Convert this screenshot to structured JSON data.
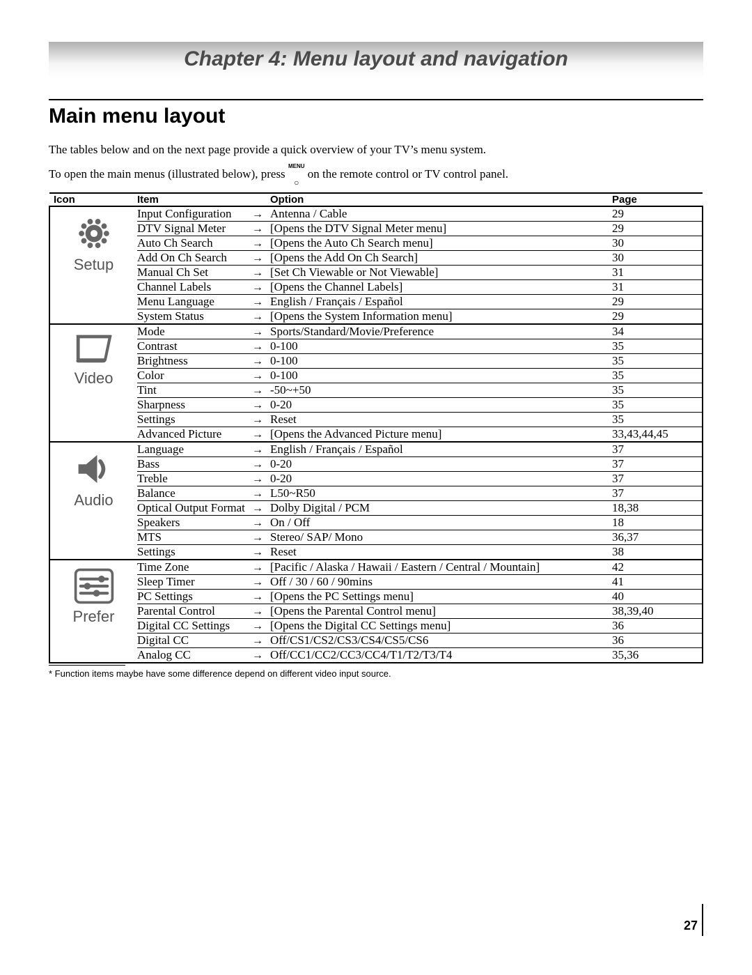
{
  "chapter_title": "Chapter 4: Menu layout and navigation",
  "section_title": "Main menu layout",
  "intro_line1": "The tables below and on the next page provide a quick overview of your TV’s menu system.",
  "intro_line2_a": "To open the main menus (illustrated below), press ",
  "intro_menu_label": "MENU",
  "intro_line2_b": " on the remote control or TV control panel.",
  "headers": {
    "icon": "Icon",
    "item": "Item",
    "option": "Option",
    "page": "Page"
  },
  "arrow": "→",
  "footnote": "*  Function items maybe have some difference depend on different video input source.",
  "page_number": "27",
  "sections": [
    {
      "name": "Setup",
      "icon": "gear",
      "rows": [
        {
          "item": "Input Configuration",
          "option": "Antenna / Cable",
          "page": "29"
        },
        {
          "item": "DTV Signal Meter",
          "option": "[Opens the DTV Signal Meter menu]",
          "page": "29"
        },
        {
          "item": "Auto Ch Search",
          "option": "[Opens the Auto Ch Search menu]",
          "page": "30"
        },
        {
          "item": "Add On Ch Search",
          "option": "[Opens the Add On Ch Search]",
          "page": "30"
        },
        {
          "item": "Manual Ch Set",
          "option": "[Set Ch Viewable or Not Viewable]",
          "page": "31"
        },
        {
          "item": "Channel Labels",
          "option": "[Opens the Channel Labels]",
          "page": "31"
        },
        {
          "item": "Menu Language",
          "option": "English / Français / Español",
          "page": "29"
        },
        {
          "item": "System Status",
          "option": "[Opens the System Information menu]",
          "page": "29"
        }
      ]
    },
    {
      "name": "Video",
      "icon": "screen",
      "rows": [
        {
          "item": "Mode",
          "option": "Sports/Standard/Movie/Preference",
          "page": "34"
        },
        {
          "item": "Contrast",
          "option": "0-100",
          "page": "35"
        },
        {
          "item": "Brightness",
          "option": "0-100",
          "page": "35"
        },
        {
          "item": "Color",
          "option": "0-100",
          "page": "35"
        },
        {
          "item": "Tint",
          "option": "-50~+50",
          "page": "35"
        },
        {
          "item": "Sharpness",
          "option": "0-20",
          "page": "35"
        },
        {
          "item": "Settings",
          "option": "Reset",
          "page": "35"
        },
        {
          "item": "Advanced Picture",
          "option": "[Opens the Advanced Picture menu]",
          "page": "33,43,44,45"
        }
      ]
    },
    {
      "name": "Audio",
      "icon": "speaker",
      "rows": [
        {
          "item": "Language",
          "option": "English / Français / Español",
          "page": "37"
        },
        {
          "item": "Bass",
          "option": "0-20",
          "page": "37"
        },
        {
          "item": "Treble",
          "option": "0-20",
          "page": "37"
        },
        {
          "item": "Balance",
          "option": "L50~R50",
          "page": "37"
        },
        {
          "item": "Optical Output Format",
          "option": "Dolby Digital / PCM",
          "page": "18,38"
        },
        {
          "item": "Speakers",
          "option": "On / Off",
          "page": "18"
        },
        {
          "item": "MTS",
          "option": "Stereo/ SAP/ Mono",
          "page": "36,37"
        },
        {
          "item": "Settings",
          "option": "Reset",
          "page": "38"
        }
      ]
    },
    {
      "name": "Prefer",
      "icon": "sliders",
      "rows": [
        {
          "item": "Time Zone",
          "option": "[Pacific / Alaska / Hawaii / Eastern / Central / Mountain]",
          "page": "42"
        },
        {
          "item": "Sleep Timer",
          "option": "Off / 30 / 60 / 90mins",
          "page": "41"
        },
        {
          "item": "PC Settings",
          "option": "[Opens the PC Settings menu]",
          "page": "40"
        },
        {
          "item": "Parental Control",
          "option": "[Opens the Parental Control menu]",
          "page": "38,39,40"
        },
        {
          "item": "Digital CC Settings",
          "option": "[Opens the Digital CC Settings menu]",
          "page": "36"
        },
        {
          "item": "Digital CC",
          "option": "Off/CS1/CS2/CS3/CS4/CS5/CS6",
          "page": "36"
        },
        {
          "item": "Analog CC",
          "option": "Off/CC1/CC2/CC3/CC4/T1/T2/T3/T4",
          "page": "35,36"
        }
      ]
    }
  ]
}
